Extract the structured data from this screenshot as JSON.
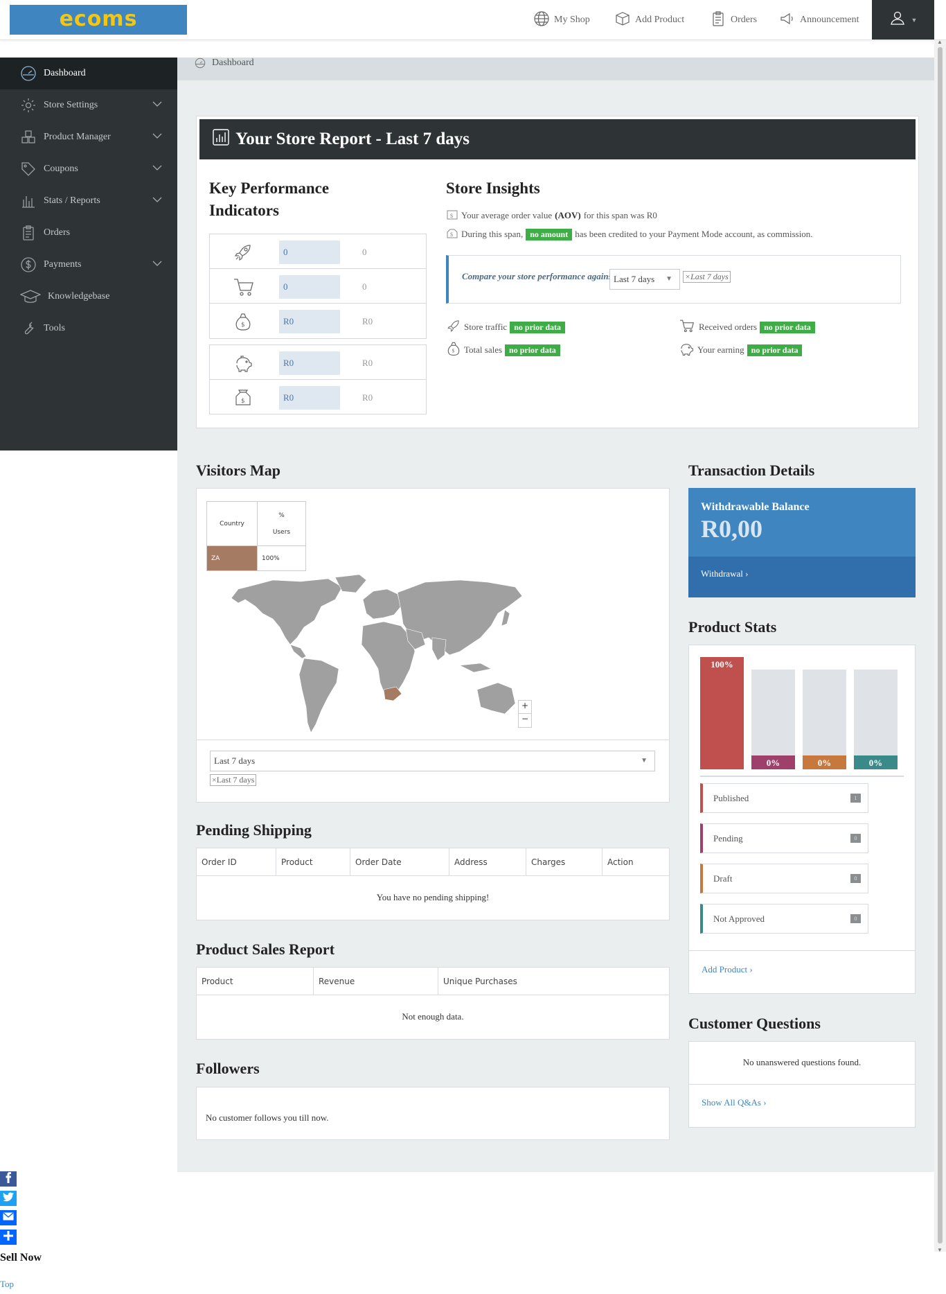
{
  "header": {
    "logo": "ecoms",
    "nav": [
      {
        "label": "My Shop",
        "icon": "globe-icon"
      },
      {
        "label": "Add Product",
        "icon": "box-icon"
      },
      {
        "label": "Orders",
        "icon": "clipboard-icon"
      },
      {
        "label": "Announcement",
        "icon": "megaphone-icon"
      }
    ]
  },
  "sidebar": {
    "items": [
      {
        "label": "Dashboard",
        "icon": "dashboard-icon",
        "active": true
      },
      {
        "label": "Store Settings",
        "icon": "gear-icon"
      },
      {
        "label": "Product Manager",
        "icon": "cubes-icon"
      },
      {
        "label": "Coupons",
        "icon": "tag-icon"
      },
      {
        "label": "Stats / Reports",
        "icon": "bar-chart-icon"
      },
      {
        "label": "Orders",
        "icon": "clipboard-icon"
      },
      {
        "label": "Payments",
        "icon": "dollar-icon"
      },
      {
        "label": "Knowledgebase",
        "icon": "graduation-cap-icon"
      },
      {
        "label": "Tools",
        "icon": "wrench-icon"
      }
    ]
  },
  "breadcrumb": "Dashboard",
  "report": {
    "title": "Your Store Report - Last 7 days",
    "kpi_title": "Key Performance Indicators",
    "kpis": [
      {
        "icon": "rocket-icon",
        "value": "0",
        "previous": "0"
      },
      {
        "icon": "cart-icon",
        "value": "0",
        "previous": "0"
      },
      {
        "icon": "money-bag-icon",
        "value": "R0",
        "previous": "R0"
      },
      {
        "icon": "piggy-bank-icon",
        "value": "R0",
        "previous": "R0"
      },
      {
        "icon": "cash-icon",
        "value": "R0",
        "previous": "R0"
      }
    ],
    "insights_title": "Store Insights",
    "aov_text_pre": "Your average order value",
    "aov_bold": "(AOV)",
    "aov_text_post": "for this span was R0",
    "credit_pre": "During this span,",
    "credit_badge": "no amount",
    "credit_post": "has been credited to your Payment Mode account, as commission.",
    "compare_label": "Compare your store performance against",
    "compare_value": "Last 7 days",
    "compare_chip": "×Last 7 days",
    "stats": [
      {
        "label": "Store traffic",
        "badge": "no prior data",
        "icon": "rocket-icon"
      },
      {
        "label": "Received orders",
        "badge": "no prior data",
        "icon": "cart-icon"
      },
      {
        "label": "Total sales",
        "badge": "no prior data",
        "icon": "money-bag-icon"
      },
      {
        "label": "Your earning",
        "badge": "no prior data",
        "icon": "piggy-bank-icon"
      }
    ]
  },
  "visitors_map": {
    "title": "Visitors Map",
    "col_country": "Country",
    "col_users_1": "%",
    "col_users_2": "Users",
    "rows": [
      {
        "country": "ZA",
        "users": "100%"
      }
    ],
    "period": "Last 7 days",
    "chip": "×Last 7 days",
    "zoom_in": "+",
    "zoom_out": "−"
  },
  "pending_shipping": {
    "title": "Pending Shipping",
    "columns": [
      "Order ID",
      "Product",
      "Order Date",
      "Address",
      "Charges",
      "Action"
    ],
    "empty": "You have no pending shipping!"
  },
  "product_sales": {
    "title": "Product Sales Report",
    "columns": [
      "Product",
      "Revenue",
      "Unique Purchases"
    ],
    "empty": "Not enough data."
  },
  "followers": {
    "title": "Followers",
    "empty": "No customer follows you till now."
  },
  "transaction": {
    "title": "Transaction Details",
    "balance_label": "Withdrawable Balance",
    "balance": "R0,00",
    "withdraw": "Withdrawal ›"
  },
  "product_stats": {
    "title": "Product Stats",
    "bars": [
      {
        "label": "100%",
        "value": 1.0,
        "color": "#c0504d"
      },
      {
        "label": "0%",
        "value": 0,
        "color": "#9e4069"
      },
      {
        "label": "0%",
        "value": 0,
        "color": "#c6783d"
      },
      {
        "label": "0%",
        "value": 0,
        "color": "#3b8a8a"
      }
    ],
    "legend": [
      {
        "label": "Published",
        "count": "1",
        "color": "#c0504d"
      },
      {
        "label": "Pending",
        "count": "0",
        "color": "#9e4069"
      },
      {
        "label": "Draft",
        "count": "0",
        "color": "#c6783d"
      },
      {
        "label": "Not Approved",
        "count": "0",
        "color": "#3b8a8a"
      }
    ],
    "add_link": "Add Product ›"
  },
  "questions": {
    "title": "Customer Questions",
    "empty": "No unanswered questions found.",
    "link": "Show All Q&As ›"
  },
  "footer": {
    "sell_now": "Sell Now",
    "top": "Top"
  },
  "colors": {
    "sidebar": "#2e3436",
    "accent": "#3f86c0",
    "badge": "#3fad46",
    "logo_text": "#f3c611"
  }
}
